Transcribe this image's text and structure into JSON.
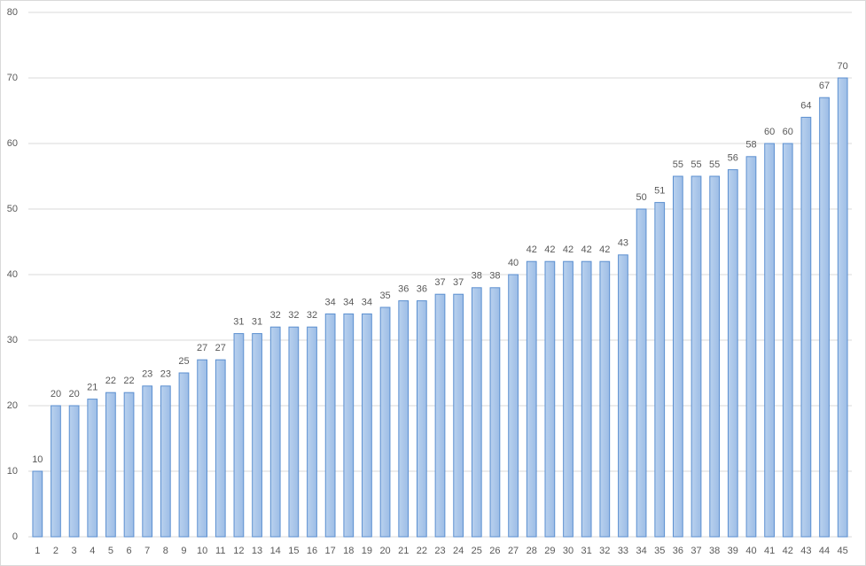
{
  "chart_data": {
    "type": "bar",
    "categories": [
      1,
      2,
      3,
      4,
      5,
      6,
      7,
      8,
      9,
      10,
      11,
      12,
      13,
      14,
      15,
      16,
      17,
      18,
      19,
      20,
      21,
      22,
      23,
      24,
      25,
      26,
      27,
      28,
      29,
      30,
      31,
      32,
      33,
      34,
      35,
      36,
      37,
      38,
      39,
      40,
      41,
      42,
      43,
      44,
      45
    ],
    "values": [
      10,
      20,
      20,
      21,
      22,
      22,
      23,
      23,
      25,
      27,
      27,
      31,
      31,
      32,
      32,
      32,
      34,
      34,
      34,
      35,
      36,
      36,
      37,
      37,
      38,
      38,
      40,
      42,
      42,
      42,
      42,
      42,
      43,
      50,
      51,
      55,
      55,
      55,
      56,
      58,
      60,
      60,
      64,
      67,
      70
    ],
    "color": "#a9c5e9",
    "ylim": [
      0,
      80
    ],
    "yticks": [
      0,
      10,
      20,
      30,
      40,
      50,
      60,
      70,
      80
    ],
    "grid": true,
    "data_labels": true
  }
}
